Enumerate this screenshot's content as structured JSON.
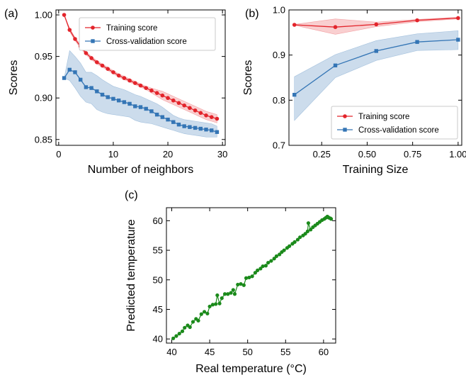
{
  "chart_data": [
    {
      "type": "line",
      "panel_label": "(a)",
      "xlabel": "Number of neighbors",
      "ylabel": "Scores",
      "xlim": [
        -0.5,
        30.5
      ],
      "ylim": [
        0.843,
        1.006
      ],
      "xticks": [
        0,
        10,
        20,
        30
      ],
      "xtick_labels": [
        "0",
        "10",
        "20",
        "30"
      ],
      "yticks": [
        0.85,
        0.9,
        0.95,
        1.0
      ],
      "ytick_labels": [
        "0.85",
        "0.90",
        "0.95",
        "1.00"
      ],
      "legend": "top-right",
      "grid": false,
      "x": [
        1,
        2,
        3,
        4,
        5,
        6,
        7,
        8,
        9,
        10,
        11,
        12,
        13,
        14,
        15,
        16,
        17,
        18,
        19,
        20,
        21,
        22,
        23,
        24,
        25,
        26,
        27,
        28,
        29
      ],
      "series": [
        {
          "name": "Training score",
          "color": "#e3242b",
          "marker": "circle",
          "values": [
            1.0,
            0.982,
            0.971,
            0.962,
            0.954,
            0.948,
            0.943,
            0.939,
            0.935,
            0.931,
            0.927,
            0.924,
            0.921,
            0.918,
            0.915,
            0.912,
            0.909,
            0.906,
            0.903,
            0.9,
            0.897,
            0.894,
            0.891,
            0.888,
            0.885,
            0.882,
            0.879,
            0.877,
            0.875
          ],
          "band_low": [
            1.0,
            0.98,
            0.969,
            0.96,
            0.952,
            0.946,
            0.941,
            0.937,
            0.933,
            0.929,
            0.925,
            0.922,
            0.919,
            0.916,
            0.913,
            0.91,
            0.906,
            0.902,
            0.898,
            0.895,
            0.892,
            0.889,
            0.886,
            0.883,
            0.88,
            0.877,
            0.874,
            0.872,
            0.87
          ],
          "band_high": [
            1.0,
            0.984,
            0.973,
            0.964,
            0.956,
            0.95,
            0.945,
            0.941,
            0.937,
            0.933,
            0.929,
            0.926,
            0.923,
            0.92,
            0.917,
            0.914,
            0.912,
            0.91,
            0.908,
            0.905,
            0.902,
            0.899,
            0.896,
            0.893,
            0.89,
            0.887,
            0.884,
            0.882,
            0.88
          ]
        },
        {
          "name": "Cross-validation score",
          "color": "#3475b5",
          "marker": "square",
          "values": [
            0.924,
            0.934,
            0.931,
            0.922,
            0.913,
            0.912,
            0.908,
            0.904,
            0.901,
            0.899,
            0.897,
            0.895,
            0.893,
            0.89,
            0.889,
            0.887,
            0.884,
            0.88,
            0.877,
            0.874,
            0.871,
            0.868,
            0.866,
            0.865,
            0.864,
            0.863,
            0.862,
            0.861,
            0.859
          ],
          "band_low": [
            0.924,
            0.921,
            0.912,
            0.902,
            0.895,
            0.893,
            0.886,
            0.883,
            0.881,
            0.88,
            0.879,
            0.878,
            0.877,
            0.873,
            0.871,
            0.87,
            0.869,
            0.867,
            0.865,
            0.863,
            0.861,
            0.859,
            0.857,
            0.856,
            0.855,
            0.854,
            0.853,
            0.853,
            0.853
          ],
          "band_high": [
            0.924,
            0.957,
            0.95,
            0.942,
            0.931,
            0.931,
            0.927,
            0.922,
            0.918,
            0.914,
            0.912,
            0.91,
            0.907,
            0.904,
            0.902,
            0.899,
            0.896,
            0.893,
            0.889,
            0.884,
            0.879,
            0.876,
            0.874,
            0.873,
            0.872,
            0.871,
            0.87,
            0.869,
            0.866
          ]
        }
      ]
    },
    {
      "type": "line",
      "panel_label": "(b)",
      "xlabel": "Training Size",
      "ylabel": "Scores",
      "xlim": [
        0.07,
        1.02
      ],
      "ylim": [
        0.7,
        1.0
      ],
      "xticks": [
        0.25,
        0.5,
        0.75,
        1.0
      ],
      "xtick_labels": [
        "0.25",
        "0.50",
        "0.75",
        "1.00"
      ],
      "yticks": [
        0.7,
        0.8,
        0.9,
        1.0
      ],
      "ytick_labels": [
        "0.7",
        "0.8",
        "0.9",
        "1.0"
      ],
      "legend": "bottom-right",
      "grid": false,
      "x": [
        0.1,
        0.325,
        0.55,
        0.775,
        1.0
      ],
      "series": [
        {
          "name": "Training score",
          "color": "#e3242b",
          "marker": "circle",
          "values": [
            0.967,
            0.962,
            0.968,
            0.977,
            0.982
          ],
          "band_low": [
            0.966,
            0.946,
            0.963,
            0.974,
            0.98
          ],
          "band_high": [
            0.968,
            0.98,
            0.973,
            0.979,
            0.984
          ]
        },
        {
          "name": "Cross-validation score",
          "color": "#3475b5",
          "marker": "square",
          "values": [
            0.812,
            0.877,
            0.909,
            0.929,
            0.934
          ],
          "band_low": [
            0.755,
            0.85,
            0.888,
            0.91,
            0.912
          ],
          "band_high": [
            0.852,
            0.901,
            0.932,
            0.947,
            0.954
          ]
        }
      ]
    },
    {
      "type": "scatter",
      "panel_label": "(c)",
      "xlabel": "Real temperature (°C)",
      "ylabel": "Predicted temperature",
      "xlim": [
        39.3,
        61.6
      ],
      "ylim": [
        39.3,
        62.2
      ],
      "xticks": [
        40,
        45,
        50,
        55,
        60
      ],
      "xtick_labels": [
        "40",
        "45",
        "50",
        "55",
        "60"
      ],
      "yticks": [
        40,
        45,
        50,
        55,
        60
      ],
      "ytick_labels": [
        "40",
        "45",
        "50",
        "55",
        "60"
      ],
      "grid": false,
      "color": "#1b8a1b",
      "points": [
        [
          40.2,
          40.1
        ],
        [
          40.6,
          40.5
        ],
        [
          41.0,
          40.9
        ],
        [
          41.4,
          41.3
        ],
        [
          41.7,
          41.9
        ],
        [
          42.1,
          42.3
        ],
        [
          42.4,
          42.0
        ],
        [
          42.8,
          42.9
        ],
        [
          43.2,
          43.4
        ],
        [
          43.5,
          43.1
        ],
        [
          43.9,
          44.2
        ],
        [
          44.3,
          44.6
        ],
        [
          44.7,
          44.3
        ],
        [
          45.0,
          45.5
        ],
        [
          45.4,
          45.8
        ],
        [
          45.8,
          45.9
        ],
        [
          46.0,
          47.4
        ],
        [
          46.3,
          46.0
        ],
        [
          46.6,
          46.9
        ],
        [
          47.0,
          47.6
        ],
        [
          47.4,
          47.6
        ],
        [
          47.8,
          47.8
        ],
        [
          48.1,
          48.3
        ],
        [
          48.3,
          47.6
        ],
        [
          48.7,
          49.2
        ],
        [
          49.1,
          49.3
        ],
        [
          49.5,
          49.1
        ],
        [
          49.8,
          50.3
        ],
        [
          50.2,
          50.4
        ],
        [
          50.6,
          50.6
        ],
        [
          51.0,
          51.2
        ],
        [
          51.3,
          51.6
        ],
        [
          51.7,
          51.9
        ],
        [
          52.0,
          52.3
        ],
        [
          52.4,
          52.4
        ],
        [
          52.7,
          52.9
        ],
        [
          53.1,
          53.2
        ],
        [
          53.5,
          53.6
        ],
        [
          53.8,
          54.0
        ],
        [
          54.2,
          54.3
        ],
        [
          54.5,
          54.7
        ],
        [
          54.8,
          55.0
        ],
        [
          55.2,
          55.4
        ],
        [
          55.5,
          55.7
        ],
        [
          55.9,
          56.1
        ],
        [
          56.2,
          56.4
        ],
        [
          56.6,
          56.8
        ],
        [
          56.9,
          57.2
        ],
        [
          57.3,
          57.5
        ],
        [
          57.6,
          57.8
        ],
        [
          57.9,
          58.2
        ],
        [
          58.0,
          59.6
        ],
        [
          58.3,
          58.5
        ],
        [
          58.6,
          58.9
        ],
        [
          58.9,
          59.2
        ],
        [
          59.2,
          59.5
        ],
        [
          59.5,
          59.8
        ],
        [
          59.8,
          60.1
        ],
        [
          60.1,
          60.3
        ],
        [
          60.3,
          60.5
        ],
        [
          60.5,
          60.7
        ],
        [
          60.7,
          60.5
        ],
        [
          60.9,
          60.4
        ],
        [
          61.0,
          60.3
        ],
        [
          60.6,
          60.6
        ]
      ]
    }
  ]
}
